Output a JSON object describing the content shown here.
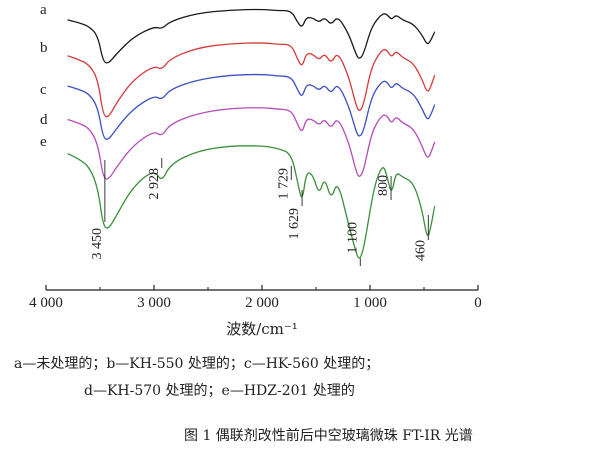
{
  "chart_data": {
    "type": "line",
    "title": "图 1  偶联剂改性前后中空玻璃微珠 FT-IR 光谱",
    "xlabel": "波数/cm⁻¹",
    "ylabel": "",
    "xlim": [
      4000,
      0
    ],
    "xticks": [
      4000,
      3000,
      2000,
      1000,
      0
    ],
    "xtick_labels": [
      "4 000",
      "3 000",
      "2 000",
      "1 000",
      "0"
    ],
    "grid": false,
    "series": [
      {
        "name": "a",
        "color": "#1a1a1a",
        "points": [
          [
            3800,
            82
          ],
          [
            3700,
            78
          ],
          [
            3600,
            72
          ],
          [
            3520,
            58
          ],
          [
            3470,
            18
          ],
          [
            3420,
            16
          ],
          [
            3350,
            30
          ],
          [
            3200,
            55
          ],
          [
            3000,
            72
          ],
          [
            2928,
            68
          ],
          [
            2850,
            80
          ],
          [
            2600,
            92
          ],
          [
            2300,
            97
          ],
          [
            2000,
            98
          ],
          [
            1850,
            96
          ],
          [
            1729,
            96
          ],
          [
            1670,
            78
          ],
          [
            1629,
            70
          ],
          [
            1590,
            86
          ],
          [
            1530,
            85
          ],
          [
            1470,
            78
          ],
          [
            1420,
            86
          ],
          [
            1360,
            74
          ],
          [
            1300,
            88
          ],
          [
            1200,
            62
          ],
          [
            1130,
            30
          ],
          [
            1100,
            22
          ],
          [
            1060,
            30
          ],
          [
            1000,
            64
          ],
          [
            950,
            80
          ],
          [
            880,
            92
          ],
          [
            840,
            90
          ],
          [
            800,
            82
          ],
          [
            760,
            90
          ],
          [
            700,
            82
          ],
          [
            600,
            76
          ],
          [
            520,
            60
          ],
          [
            470,
            44
          ],
          [
            440,
            50
          ],
          [
            400,
            64
          ]
        ]
      },
      {
        "name": "b",
        "color": "#d63a3a",
        "points": [
          [
            3800,
            82
          ],
          [
            3700,
            78
          ],
          [
            3600,
            72
          ],
          [
            3520,
            56
          ],
          [
            3470,
            14
          ],
          [
            3420,
            12
          ],
          [
            3350,
            28
          ],
          [
            3200,
            54
          ],
          [
            3000,
            71
          ],
          [
            2928,
            66
          ],
          [
            2850,
            79
          ],
          [
            2600,
            91
          ],
          [
            2300,
            96
          ],
          [
            2000,
            97
          ],
          [
            1850,
            95
          ],
          [
            1729,
            95
          ],
          [
            1670,
            78
          ],
          [
            1629,
            69
          ],
          [
            1590,
            85
          ],
          [
            1530,
            84
          ],
          [
            1470,
            77
          ],
          [
            1420,
            85
          ],
          [
            1360,
            73
          ],
          [
            1300,
            87
          ],
          [
            1200,
            60
          ],
          [
            1130,
            26
          ],
          [
            1100,
            18
          ],
          [
            1060,
            26
          ],
          [
            1000,
            62
          ],
          [
            950,
            78
          ],
          [
            880,
            90
          ],
          [
            840,
            88
          ],
          [
            800,
            80
          ],
          [
            760,
            88
          ],
          [
            700,
            80
          ],
          [
            600,
            74
          ],
          [
            520,
            56
          ],
          [
            470,
            40
          ],
          [
            440,
            46
          ],
          [
            400,
            60
          ]
        ]
      },
      {
        "name": "c",
        "color": "#3b4fc4",
        "points": [
          [
            3800,
            82
          ],
          [
            3700,
            78
          ],
          [
            3600,
            72
          ],
          [
            3520,
            55
          ],
          [
            3470,
            15
          ],
          [
            3420,
            13
          ],
          [
            3350,
            27
          ],
          [
            3200,
            52
          ],
          [
            3000,
            70
          ],
          [
            2928,
            64
          ],
          [
            2850,
            78
          ],
          [
            2600,
            90
          ],
          [
            2300,
            96
          ],
          [
            2000,
            97
          ],
          [
            1850,
            95
          ],
          [
            1729,
            94
          ],
          [
            1670,
            77
          ],
          [
            1629,
            67
          ],
          [
            1590,
            84
          ],
          [
            1530,
            83
          ],
          [
            1470,
            76
          ],
          [
            1420,
            84
          ],
          [
            1360,
            72
          ],
          [
            1300,
            86
          ],
          [
            1200,
            58
          ],
          [
            1130,
            24
          ],
          [
            1100,
            16
          ],
          [
            1060,
            24
          ],
          [
            1000,
            60
          ],
          [
            950,
            77
          ],
          [
            880,
            89
          ],
          [
            840,
            87
          ],
          [
            800,
            78
          ],
          [
            760,
            87
          ],
          [
            700,
            79
          ],
          [
            600,
            73
          ],
          [
            520,
            54
          ],
          [
            470,
            38
          ],
          [
            440,
            44
          ],
          [
            400,
            58
          ]
        ]
      },
      {
        "name": "d",
        "color": "#b54bb8",
        "points": [
          [
            3800,
            82
          ],
          [
            3700,
            78
          ],
          [
            3600,
            72
          ],
          [
            3520,
            54
          ],
          [
            3470,
            14
          ],
          [
            3420,
            12
          ],
          [
            3350,
            26
          ],
          [
            3200,
            51
          ],
          [
            3000,
            69
          ],
          [
            2928,
            62
          ],
          [
            2850,
            77
          ],
          [
            2600,
            89
          ],
          [
            2300,
            95
          ],
          [
            2000,
            96
          ],
          [
            1850,
            94
          ],
          [
            1729,
            93
          ],
          [
            1670,
            76
          ],
          [
            1629,
            66
          ],
          [
            1590,
            83
          ],
          [
            1530,
            82
          ],
          [
            1470,
            75
          ],
          [
            1420,
            83
          ],
          [
            1360,
            71
          ],
          [
            1300,
            85
          ],
          [
            1200,
            57
          ],
          [
            1130,
            22
          ],
          [
            1100,
            14
          ],
          [
            1060,
            22
          ],
          [
            1000,
            58
          ],
          [
            950,
            76
          ],
          [
            880,
            88
          ],
          [
            840,
            86
          ],
          [
            800,
            77
          ],
          [
            760,
            86
          ],
          [
            700,
            78
          ],
          [
            600,
            72
          ],
          [
            520,
            52
          ],
          [
            470,
            36
          ],
          [
            440,
            42
          ],
          [
            400,
            56
          ]
        ]
      },
      {
        "name": "e",
        "color": "#3a8f3a",
        "points": [
          [
            3800,
            88
          ],
          [
            3700,
            84
          ],
          [
            3600,
            78
          ],
          [
            3520,
            62
          ],
          [
            3470,
            32
          ],
          [
            3420,
            30
          ],
          [
            3350,
            40
          ],
          [
            3200,
            62
          ],
          [
            3000,
            76
          ],
          [
            2928,
            66
          ],
          [
            2850,
            80
          ],
          [
            2600,
            90
          ],
          [
            2300,
            94
          ],
          [
            2000,
            94
          ],
          [
            1850,
            92
          ],
          [
            1729,
            88
          ],
          [
            1670,
            66
          ],
          [
            1629,
            50
          ],
          [
            1590,
            74
          ],
          [
            1530,
            72
          ],
          [
            1470,
            56
          ],
          [
            1420,
            70
          ],
          [
            1360,
            52
          ],
          [
            1300,
            68
          ],
          [
            1200,
            34
          ],
          [
            1130,
            12
          ],
          [
            1100,
            6
          ],
          [
            1060,
            14
          ],
          [
            1000,
            44
          ],
          [
            950,
            66
          ],
          [
            880,
            80
          ],
          [
            840,
            70
          ],
          [
            800,
            56
          ],
          [
            760,
            74
          ],
          [
            700,
            70
          ],
          [
            600,
            66
          ],
          [
            520,
            46
          ],
          [
            470,
            22
          ],
          [
            440,
            30
          ],
          [
            400,
            48
          ]
        ]
      }
    ],
    "annotations": [
      {
        "text": "3 450",
        "x": 3450
      },
      {
        "text": "2 928",
        "x": 2928
      },
      {
        "text": "1 729",
        "x": 1729
      },
      {
        "text": "1 629",
        "x": 1629
      },
      {
        "text": "1 100",
        "x": 1100
      },
      {
        "text": "800",
        "x": 800
      },
      {
        "text": "460",
        "x": 460
      }
    ]
  },
  "legend_lines": [
    "a—未处理的；b—KH-550 处理的；c—HK-560 处理的；",
    "d—KH-570 处理的；e—HDZ-201 处理的"
  ]
}
